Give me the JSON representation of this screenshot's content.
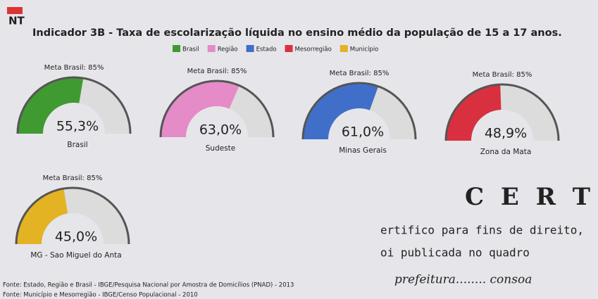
{
  "logo": "NT",
  "title": "Indicador 3B - Taxa de escolarização líquida no ensino médio da população de 15 a 17 anos.",
  "legend": [
    {
      "name": "Brasil",
      "color": "#3f9a32"
    },
    {
      "name": "Região",
      "color": "#e58bc8"
    },
    {
      "name": "Estado",
      "color": "#3f6fc9"
    },
    {
      "name": "Mesorregião",
      "color": "#d93040"
    },
    {
      "name": "Município",
      "color": "#e3b323"
    }
  ],
  "chart_data": [
    {
      "type": "gauge",
      "title": "Meta Brasil: 85%",
      "categories": [
        "Brasil"
      ],
      "values": [
        55.3
      ],
      "value_labels": [
        "55,3%"
      ],
      "color": "#3f9a32",
      "ylim": [
        0,
        100
      ]
    },
    {
      "type": "gauge",
      "title": "Meta Brasil: 85%",
      "categories": [
        "Sudeste"
      ],
      "values": [
        63.0
      ],
      "value_labels": [
        "63,0%"
      ],
      "color": "#e58bc8",
      "ylim": [
        0,
        100
      ]
    },
    {
      "type": "gauge",
      "title": "Meta Brasil: 85%",
      "categories": [
        "Minas Gerais"
      ],
      "values": [
        61.0
      ],
      "value_labels": [
        "61,0%"
      ],
      "color": "#3f6fc9",
      "ylim": [
        0,
        100
      ]
    },
    {
      "type": "gauge",
      "title": "Meta Brasil: 85%",
      "categories": [
        "Zona da Mata"
      ],
      "values": [
        48.9
      ],
      "value_labels": [
        "48,9%"
      ],
      "color": "#d93040",
      "ylim": [
        0,
        100
      ]
    },
    {
      "type": "gauge",
      "title": "Meta Brasil: 85%",
      "categories": [
        "MG - Sao Miguel do Anta"
      ],
      "values": [
        45.0
      ],
      "value_labels": [
        "45,0%"
      ],
      "color": "#e3b323",
      "ylim": [
        0,
        100
      ]
    }
  ],
  "stamp": [
    "C E R T",
    "ertifico para fins de direito,",
    "oi publicada no quadro",
    "prefeitura........ consoa"
  ],
  "sources": [
    "Fonte: Estado, Região e Brasil - IBGE/Pesquisa Nacional por Amostra de Domicílios (PNAD) - 2013",
    "Fonte: Município e Mesorregião - IBGE/Censo Populacional - 2010"
  ]
}
